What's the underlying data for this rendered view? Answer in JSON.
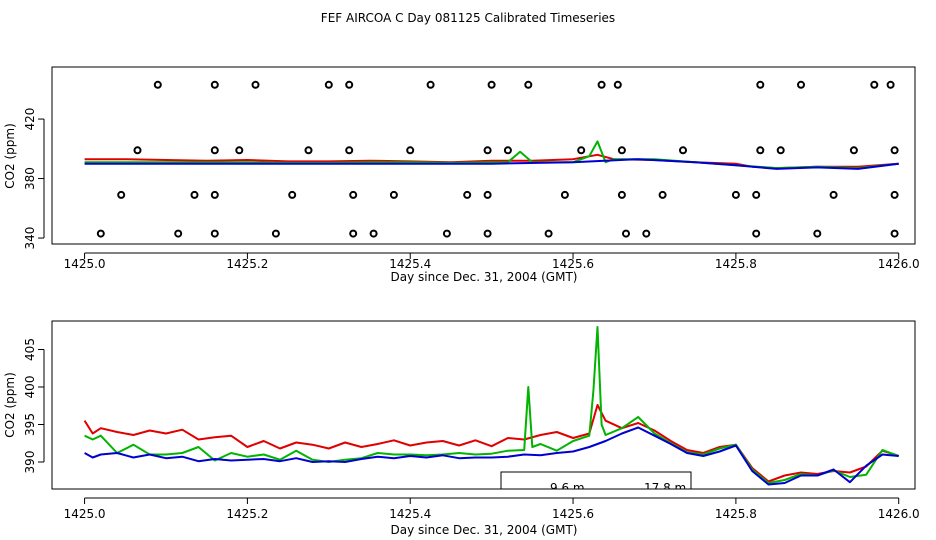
{
  "title": "FEF AIRCOA C  Day 081125  Calibrated Timeseries",
  "colors": {
    "red": "#e00000",
    "green": "#00b400",
    "blue": "#0000d0",
    "axis": "#000000"
  },
  "chart_data": [
    {
      "type": "line",
      "id": "top",
      "xlabel": "Day since Dec. 31, 2004 (GMT)",
      "ylabel": "CO2 (ppm)",
      "xlim": [
        1424.96,
        1426.02
      ],
      "ylim": [
        336,
        455
      ],
      "xticks": [
        1425.0,
        1425.2,
        1425.4,
        1425.6,
        1425.8,
        1426.0
      ],
      "xtick_labels": [
        "1425.0",
        "1425.2",
        "1425.4",
        "1425.6",
        "1425.8",
        "1426.0"
      ],
      "yticks": [
        340,
        380,
        420
      ],
      "ytick_labels": [
        "340",
        "380",
        "420"
      ],
      "series": [
        {
          "name": "red",
          "color": "#e00000",
          "x": [
            1425.0,
            1425.05,
            1425.1,
            1425.15,
            1425.2,
            1425.25,
            1425.3,
            1425.35,
            1425.4,
            1425.45,
            1425.5,
            1425.55,
            1425.6,
            1425.63,
            1425.65,
            1425.7,
            1425.75,
            1425.8,
            1425.82,
            1425.85,
            1425.9,
            1425.95,
            1426.0
          ],
          "values": [
            393,
            393,
            392.5,
            392,
            392.5,
            391.5,
            391.5,
            392,
            391.5,
            391,
            392,
            392,
            393,
            396,
            393,
            392.5,
            391,
            390,
            388,
            387,
            388,
            388,
            390
          ]
        },
        {
          "name": "green",
          "color": "#00b400",
          "x": [
            1425.0,
            1425.05,
            1425.1,
            1425.15,
            1425.2,
            1425.25,
            1425.3,
            1425.35,
            1425.4,
            1425.45,
            1425.5,
            1425.52,
            1425.535,
            1425.55,
            1425.6,
            1425.62,
            1425.63,
            1425.64,
            1425.65,
            1425.7,
            1425.75,
            1425.8,
            1425.85,
            1425.9,
            1425.95,
            1426.0
          ],
          "values": [
            391,
            391,
            391,
            391,
            391,
            390.5,
            390.5,
            391,
            391,
            390.5,
            391,
            391,
            398,
            391,
            391,
            395,
            405,
            391,
            393,
            393,
            391,
            389,
            387,
            388,
            387,
            390
          ]
        },
        {
          "name": "blue",
          "color": "#0000d0",
          "x": [
            1425.0,
            1425.1,
            1425.2,
            1425.3,
            1425.4,
            1425.5,
            1425.6,
            1425.68,
            1425.75,
            1425.8,
            1425.85,
            1425.9,
            1425.95,
            1426.0
          ],
          "values": [
            390,
            390,
            390,
            390,
            390,
            390,
            391,
            393,
            391,
            389,
            386.5,
            387.5,
            386.5,
            390
          ]
        }
      ],
      "markers": {
        "name": "calibration",
        "levels": [
          {
            "y": 343,
            "x": [
              1425.02,
              1425.115,
              1425.16,
              1425.235,
              1425.33,
              1425.355,
              1425.445,
              1425.495,
              1425.57,
              1425.665,
              1425.69,
              1425.825,
              1425.9,
              1425.995
            ]
          },
          {
            "y": 369,
            "x": [
              1425.045,
              1425.135,
              1425.16,
              1425.255,
              1425.33,
              1425.38,
              1425.47,
              1425.495,
              1425.59,
              1425.66,
              1425.71,
              1425.8,
              1425.825,
              1425.92,
              1425.995
            ]
          },
          {
            "y": 399,
            "x": [
              1425.065,
              1425.16,
              1425.19,
              1425.275,
              1425.325,
              1425.4,
              1425.495,
              1425.52,
              1425.61,
              1425.66,
              1425.735,
              1425.83,
              1425.855,
              1425.945,
              1425.995
            ]
          },
          {
            "y": 443,
            "x": [
              1425.09,
              1425.16,
              1425.21,
              1425.3,
              1425.325,
              1425.425,
              1425.5,
              1425.545,
              1425.635,
              1425.655,
              1425.83,
              1425.88,
              1425.97,
              1425.99
            ]
          }
        ]
      }
    },
    {
      "type": "line",
      "id": "bottom",
      "xlabel": "Day since Dec. 31, 2004 (GMT)",
      "ylabel": "CO2 (ppm)",
      "xlim": [
        1424.96,
        1426.02
      ],
      "ylim": [
        386.4,
        408.8
      ],
      "xticks": [
        1425.0,
        1425.2,
        1425.4,
        1425.6,
        1425.8,
        1426.0
      ],
      "xtick_labels": [
        "1425.0",
        "1425.2",
        "1425.4",
        "1425.6",
        "1425.8",
        "1426.0"
      ],
      "yticks": [
        390,
        395,
        400,
        405
      ],
      "ytick_labels": [
        "390",
        "395",
        "400",
        "405"
      ],
      "legend_box": {
        "position": "bottom-center",
        "entries": [
          "9.6 m",
          "17.8 m"
        ]
      },
      "series": [
        {
          "name": "red",
          "color": "#e00000",
          "x": [
            1425.0,
            1425.01,
            1425.02,
            1425.04,
            1425.06,
            1425.08,
            1425.1,
            1425.12,
            1425.14,
            1425.16,
            1425.18,
            1425.2,
            1425.22,
            1425.24,
            1425.26,
            1425.28,
            1425.3,
            1425.32,
            1425.34,
            1425.36,
            1425.38,
            1425.4,
            1425.42,
            1425.44,
            1425.46,
            1425.48,
            1425.5,
            1425.52,
            1425.54,
            1425.56,
            1425.58,
            1425.6,
            1425.62,
            1425.63,
            1425.64,
            1425.66,
            1425.68,
            1425.7,
            1425.72,
            1425.74,
            1425.76,
            1425.78,
            1425.8,
            1425.82,
            1425.84,
            1425.86,
            1425.88,
            1425.9,
            1425.92,
            1425.94,
            1425.96,
            1425.98,
            1426.0
          ],
          "values": [
            395.5,
            393.8,
            394.5,
            394.0,
            393.6,
            394.2,
            393.8,
            394.3,
            393.0,
            393.3,
            393.5,
            392.0,
            392.8,
            391.8,
            392.6,
            392.3,
            391.8,
            392.6,
            392.0,
            392.4,
            392.9,
            392.2,
            392.6,
            392.8,
            392.2,
            392.9,
            392.1,
            393.2,
            393.0,
            393.6,
            394.0,
            393.2,
            393.8,
            397.6,
            395.5,
            394.5,
            395.2,
            394.2,
            392.8,
            391.6,
            391.2,
            392.0,
            392.3,
            389.2,
            387.4,
            388.2,
            388.6,
            388.4,
            388.8,
            388.6,
            389.4,
            391.5,
            390.8
          ]
        },
        {
          "name": "green",
          "color": "#00b400",
          "x": [
            1425.0,
            1425.01,
            1425.02,
            1425.04,
            1425.06,
            1425.08,
            1425.1,
            1425.12,
            1425.14,
            1425.16,
            1425.18,
            1425.2,
            1425.22,
            1425.24,
            1425.26,
            1425.28,
            1425.3,
            1425.32,
            1425.34,
            1425.36,
            1425.38,
            1425.4,
            1425.42,
            1425.44,
            1425.46,
            1425.48,
            1425.5,
            1425.52,
            1425.54,
            1425.545,
            1425.55,
            1425.56,
            1425.58,
            1425.6,
            1425.62,
            1425.625,
            1425.63,
            1425.635,
            1425.64,
            1425.66,
            1425.68,
            1425.7,
            1425.72,
            1425.74,
            1425.76,
            1425.78,
            1425.8,
            1425.82,
            1425.84,
            1425.86,
            1425.88,
            1425.9,
            1425.92,
            1425.94,
            1425.96,
            1425.98,
            1426.0
          ],
          "values": [
            393.5,
            393.0,
            393.5,
            391.2,
            392.3,
            391.0,
            391.0,
            391.2,
            392.0,
            390.2,
            391.2,
            390.7,
            391.0,
            390.3,
            391.5,
            390.3,
            390.0,
            390.3,
            390.5,
            391.2,
            391.0,
            391.0,
            390.9,
            391.0,
            391.2,
            391.0,
            391.1,
            391.5,
            391.6,
            400.0,
            392.0,
            392.4,
            391.5,
            392.8,
            393.5,
            399.5,
            408.0,
            395.0,
            393.6,
            394.5,
            396.0,
            393.8,
            392.5,
            391.3,
            391.0,
            391.8,
            392.3,
            389.0,
            387.2,
            387.6,
            388.4,
            388.2,
            388.9,
            388.0,
            388.3,
            391.6,
            390.8
          ]
        },
        {
          "name": "blue",
          "color": "#0000d0",
          "x": [
            1425.0,
            1425.01,
            1425.02,
            1425.04,
            1425.06,
            1425.08,
            1425.1,
            1425.12,
            1425.14,
            1425.16,
            1425.18,
            1425.2,
            1425.22,
            1425.24,
            1425.26,
            1425.28,
            1425.3,
            1425.32,
            1425.34,
            1425.36,
            1425.38,
            1425.4,
            1425.42,
            1425.44,
            1425.46,
            1425.48,
            1425.5,
            1425.52,
            1425.54,
            1425.56,
            1425.58,
            1425.6,
            1425.62,
            1425.64,
            1425.66,
            1425.68,
            1425.7,
            1425.72,
            1425.74,
            1425.76,
            1425.78,
            1425.8,
            1425.82,
            1425.84,
            1425.86,
            1425.88,
            1425.9,
            1425.92,
            1425.94,
            1425.96,
            1425.98,
            1426.0
          ],
          "values": [
            391.2,
            390.6,
            391.0,
            391.2,
            390.6,
            391.0,
            390.5,
            390.7,
            390.1,
            390.4,
            390.2,
            390.3,
            390.4,
            390.1,
            390.5,
            390.0,
            390.1,
            390.0,
            390.4,
            390.7,
            390.5,
            390.8,
            390.6,
            390.9,
            390.5,
            390.6,
            390.6,
            390.7,
            391.0,
            390.9,
            391.2,
            391.4,
            392.0,
            392.8,
            393.8,
            394.6,
            393.5,
            392.4,
            391.2,
            390.8,
            391.4,
            392.2,
            388.8,
            387.0,
            387.2,
            388.2,
            388.2,
            389.0,
            387.3,
            389.5,
            391.0,
            390.8
          ]
        }
      ]
    }
  ]
}
